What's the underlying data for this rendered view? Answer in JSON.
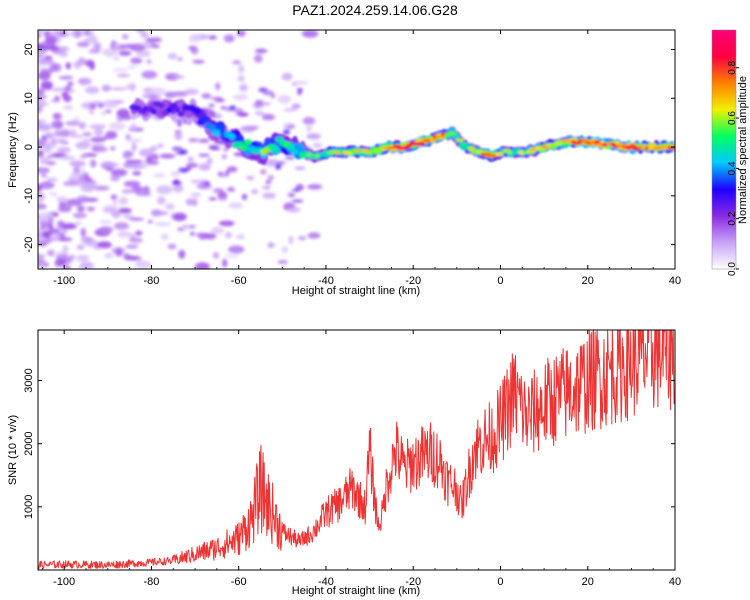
{
  "chart_data": [
    {
      "type": "heatmap",
      "title": "PAZ1.2024.259.14.06.G28",
      "xlabel": "Height of straight line (km)",
      "ylabel": "Frequency (Hz)",
      "xlim": [
        -106,
        40
      ],
      "ylim": [
        -25,
        24
      ],
      "x_ticks": [
        -100,
        -80,
        -60,
        -40,
        -20,
        0,
        20,
        40
      ],
      "y_ticks": [
        -20,
        -10,
        0,
        10,
        20
      ],
      "colorbar": {
        "label": "Normalized spectral amplitude",
        "range": [
          0,
          0.95
        ],
        "ticks": [
          "0.0",
          "0.2",
          "0.4",
          "0.6",
          "0.8"
        ],
        "tick_values": [
          0,
          0.2,
          0.4,
          0.6,
          0.8
        ],
        "colormap": [
          "#ffffff",
          "#c8a2f8",
          "#8a2be2",
          "#1e00ff",
          "#00c8ff",
          "#00ff60",
          "#f0f000",
          "#ff8000",
          "#ff0040",
          "#ff007a"
        ]
      },
      "ridge": {
        "x": [
          -80,
          -75,
          -70,
          -66,
          -62,
          -58,
          -54,
          -50,
          -46,
          -42,
          -38,
          -34,
          -30,
          -26,
          -22,
          -18,
          -14,
          -11,
          -8,
          -5,
          -2,
          0,
          3,
          6,
          10,
          15,
          20,
          25,
          30,
          35,
          40
        ],
        "frequency": [
          8,
          8,
          7,
          4,
          2,
          0,
          -1,
          1,
          -1,
          -2,
          -1,
          -1,
          -1,
          0,
          0,
          1,
          2,
          3,
          0,
          -1,
          -2,
          -1,
          -1,
          -1,
          0,
          1,
          1,
          0.5,
          0,
          0,
          0
        ],
        "amplitude": [
          0.25,
          0.28,
          0.3,
          0.38,
          0.45,
          0.5,
          0.55,
          0.5,
          0.5,
          0.55,
          0.62,
          0.65,
          0.65,
          0.72,
          0.88,
          0.85,
          0.82,
          0.6,
          0.55,
          0.75,
          0.78,
          0.6,
          0.55,
          0.6,
          0.65,
          0.75,
          0.92,
          0.88,
          0.85,
          0.78,
          0.75
        ]
      },
      "colors": {
        "axis": "#000000"
      }
    },
    {
      "type": "line",
      "xlabel": "Height of straight line (km)",
      "ylabel": "SNR (10 * v/v)",
      "xlim": [
        -106,
        40
      ],
      "ylim": [
        0,
        3800
      ],
      "x_ticks": [
        -100,
        -80,
        -60,
        -40,
        -20,
        0,
        20,
        40
      ],
      "y_ticks": [
        1000,
        2000,
        3000
      ],
      "series": [
        {
          "color": "#ee3333",
          "x": [
            -106,
            -100,
            -90,
            -80,
            -75,
            -70,
            -65,
            -60,
            -57,
            -55,
            -53,
            -50,
            -46,
            -43,
            -40,
            -37,
            -34,
            -31,
            -30,
            -29,
            -28,
            -27,
            -26,
            -24,
            -22,
            -20,
            -18,
            -16,
            -14,
            -12,
            -10,
            -9,
            -8,
            -6,
            -4,
            -2,
            0,
            2,
            3,
            4,
            6,
            8,
            10,
            12,
            15,
            18,
            20,
            25,
            30,
            35,
            40
          ],
          "y": [
            80,
            90,
            80,
            120,
            150,
            250,
            350,
            500,
            800,
            1300,
            1000,
            600,
            450,
            600,
            900,
            1050,
            1300,
            1000,
            1900,
            1200,
            700,
            900,
            1400,
            1900,
            1600,
            1700,
            1800,
            1850,
            1750,
            1400,
            1300,
            1000,
            1300,
            1900,
            2050,
            2100,
            2300,
            2600,
            2800,
            2700,
            2400,
            2500,
            2600,
            2700,
            2800,
            2900,
            3000,
            3150,
            3300,
            3450,
            3500
          ]
        }
      ],
      "colors": {
        "axis": "#000000"
      }
    }
  ]
}
